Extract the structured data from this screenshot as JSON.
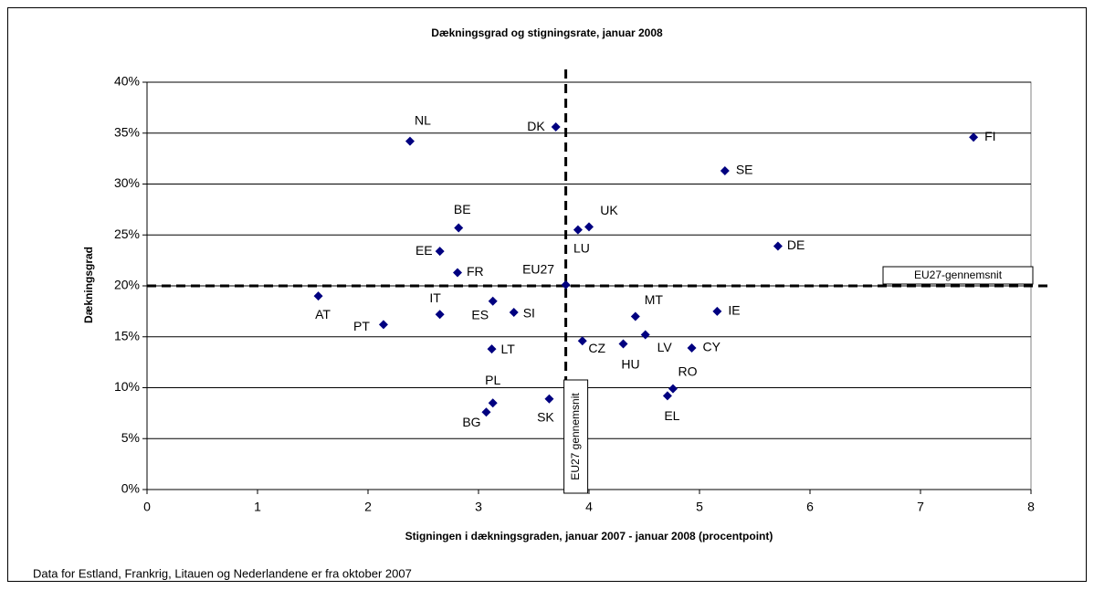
{
  "chart_data": {
    "type": "scatter",
    "title": "Dækningsgrad og stigningsrate, januar 2008",
    "xlabel": "Stigningen i dækningsgraden, januar 2007 - januar 2008 (procentpoint)",
    "ylabel": "Dækningsgrad",
    "labels": [
      "NL",
      "DK",
      "FI",
      "SE",
      "BE",
      "UK",
      "LU",
      "DE",
      "EE",
      "FR",
      "EU27",
      "AT",
      "IT",
      "ES",
      "SI",
      "PT",
      "MT",
      "IE",
      "LV",
      "CZ",
      "HU",
      "CY",
      "LT",
      "RO",
      "EL",
      "SK",
      "PL",
      "BG"
    ],
    "x": [
      2.38,
      3.7,
      7.48,
      5.23,
      2.82,
      4.0,
      3.9,
      5.71,
      2.65,
      2.81,
      3.79,
      1.55,
      2.65,
      3.13,
      3.32,
      2.14,
      4.42,
      5.16,
      4.51,
      3.94,
      4.31,
      4.93,
      3.12,
      4.76,
      4.71,
      3.64,
      3.13,
      3.07
    ],
    "values": [
      34.2,
      35.6,
      34.6,
      31.3,
      25.7,
      25.8,
      25.5,
      23.9,
      23.4,
      21.3,
      20.1,
      19.0,
      17.2,
      18.5,
      17.4,
      16.2,
      17.0,
      17.5,
      15.2,
      14.6,
      14.3,
      13.9,
      13.8,
      9.9,
      9.2,
      8.9,
      8.5,
      7.6
    ],
    "color": "#000080",
    "xlim": [
      0,
      8
    ],
    "xticks": [
      0,
      1,
      2,
      3,
      4,
      5,
      6,
      7,
      8
    ],
    "ylim": [
      0,
      40
    ],
    "yticks": [
      {
        "value": 0,
        "label": "0%"
      },
      {
        "value": 5,
        "label": "5%"
      },
      {
        "value": 10,
        "label": "10%"
      },
      {
        "value": 15,
        "label": "15%"
      },
      {
        "value": 20,
        "label": "20%"
      },
      {
        "value": 25,
        "label": "25%"
      },
      {
        "value": 30,
        "label": "30%"
      },
      {
        "value": 35,
        "label": "35%"
      },
      {
        "value": 40,
        "label": "40%"
      }
    ],
    "grid": true,
    "reference_lines": [
      {
        "axis": "x",
        "value": 3.79,
        "label": "EU27 gennemsnit"
      },
      {
        "axis": "y",
        "value": 20,
        "label": "EU27-gennemsnit"
      }
    ],
    "note": "Data for Estland, Frankrig, Litauen og Nederlandene er fra oktober 2007"
  }
}
